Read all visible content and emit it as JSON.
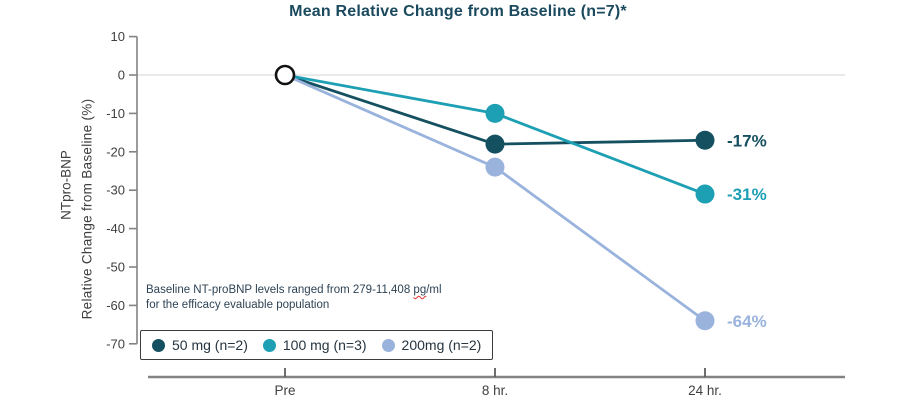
{
  "y_axis": {
    "line1": "NTpro-BNP",
    "line2": "Relative Change from Baseline (%)"
  },
  "annotation": {
    "line1_pre": "Baseline NT-proBNP levels ranged from 279-11,408 ",
    "spellcheck_word": "pg",
    "line1_post": "/ml",
    "line2": "for the efficacy evaluable population"
  },
  "chart_data": {
    "type": "line",
    "title": "Mean Relative Change from Baseline (n=7)*",
    "x": [
      "Pre",
      "8 hr.",
      "24 hr."
    ],
    "xlabel": "",
    "ylabel": "NTpro-BNP Relative Change from Baseline (%)",
    "ylim": [
      -70,
      10
    ],
    "y_ticks": [
      10,
      0,
      -10,
      -20,
      -30,
      -40,
      -50,
      -60,
      -70
    ],
    "grid": "zero-line-only",
    "legend_position": "bottom-left-inside",
    "baseline_marker": {
      "x": "Pre",
      "value": 0,
      "style": "open-circle-black-outline"
    },
    "series": [
      {
        "name": "50 mg (n=2)",
        "color": "#155060",
        "values": [
          0,
          -18,
          -17
        ],
        "end_label": "-17%"
      },
      {
        "name": "100 mg (n=3)",
        "color": "#1d9fb4",
        "values": [
          0,
          -10,
          -31
        ],
        "end_label": "-31%"
      },
      {
        "name": "200mg (n=2)",
        "color": "#9ab3dd",
        "values": [
          0,
          -24,
          -64
        ],
        "end_label": "-64%"
      }
    ]
  },
  "colors": {
    "title": "#1b4a5e",
    "axis": "#838383",
    "tick_text": "#404040",
    "zero_line": "#e4e4e4",
    "annotation_text": "#2e4355",
    "legend_border": "#3c3c3c",
    "spellcheck_underline": "#e03030"
  }
}
